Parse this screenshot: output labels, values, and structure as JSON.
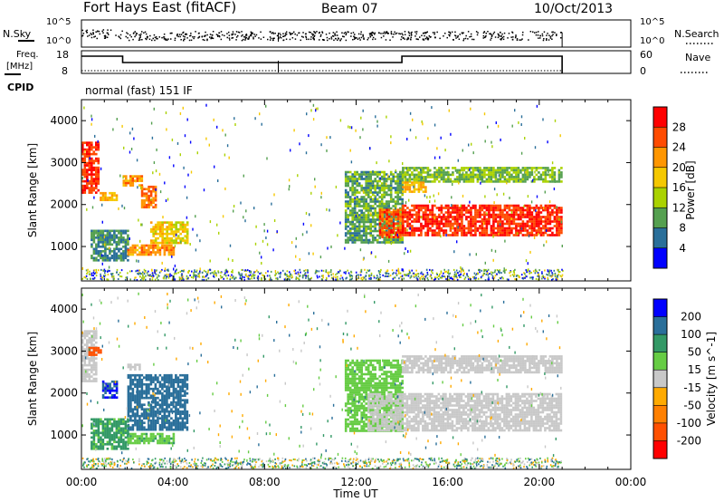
{
  "header": {
    "station": "Fort Hays East (fitACF)",
    "beam": "Beam 07",
    "date": "10/Oct/2013"
  },
  "strip1": {
    "left_label": "N.Sky",
    "right_label": "N.Search",
    "left_ticks": [
      "10^5",
      "10^0"
    ],
    "right_ticks": [
      "10^5",
      "10^0"
    ]
  },
  "strip2": {
    "left_label_1": "Freq.",
    "left_label_2": "[MHz]",
    "right_label": "Nave",
    "left_ticks": [
      "18",
      "8"
    ],
    "right_ticks": [
      "60",
      "0"
    ]
  },
  "cpid": {
    "label": "CPID",
    "value": "normal (fast) 151 IF"
  },
  "x_axis": {
    "title": "Time UT",
    "ticks": [
      "00:00",
      "04:00",
      "08:00",
      "12:00",
      "16:00",
      "20:00",
      "00:00"
    ]
  },
  "power_panel": {
    "ylabel": "Slant Range [km]",
    "yticks": [
      "1000",
      "2000",
      "3000",
      "4000"
    ],
    "colorbar_label": "Power [dB]",
    "colorbar_ticks": [
      "28",
      "24",
      "20",
      "16",
      "12",
      "8",
      "4"
    ],
    "colorbar_colors": [
      "#ff0000",
      "#ff4b00",
      "#ff9600",
      "#f5c800",
      "#aad200",
      "#55a050",
      "#2a6f9a",
      "#0000ff"
    ]
  },
  "velocity_panel": {
    "ylabel": "Slant Range [km]",
    "yticks": [
      "1000",
      "2000",
      "3000",
      "4000"
    ],
    "colorbar_label": "Velocity [m s^-1]",
    "colorbar_ticks": [
      "200",
      "100",
      "50",
      "15",
      "-15",
      "-50",
      "-100",
      "-200"
    ],
    "colorbar_colors": [
      "#0000ff",
      "#2a6f9a",
      "#339966",
      "#66cc44",
      "#c8c8c8",
      "#ffaa00",
      "#ff8000",
      "#ff5000",
      "#ff0000"
    ]
  },
  "chart_data": [
    {
      "type": "heatmap",
      "title": "Power",
      "xlabel": "Time UT",
      "ylabel": "Slant Range [km]",
      "x_range_hours": [
        0,
        24
      ],
      "y_range_km": [
        180,
        4500
      ],
      "colorbar": "Power [dB]",
      "colorbar_range": [
        0,
        32
      ],
      "features": [
        {
          "t_start": 0.0,
          "t_end": 0.7,
          "range_start": 2300,
          "range_end": 3500,
          "power_db": 28
        },
        {
          "t_start": 0.8,
          "t_end": 1.5,
          "range_start": 2100,
          "range_end": 2300,
          "power_db": 20
        },
        {
          "t_start": 1.8,
          "t_end": 2.6,
          "range_start": 2450,
          "range_end": 2700,
          "power_db": 22
        },
        {
          "t_start": 2.6,
          "t_end": 3.2,
          "range_start": 1950,
          "range_end": 2450,
          "power_db": 24
        },
        {
          "t_start": 3.0,
          "t_end": 4.6,
          "range_start": 1100,
          "range_end": 1600,
          "power_db": 18
        },
        {
          "t_start": 0.4,
          "t_end": 2.0,
          "range_start": 650,
          "range_end": 1400,
          "power_db": 8
        },
        {
          "t_start": 2.0,
          "t_end": 4.0,
          "range_start": 800,
          "range_end": 1050,
          "power_db": 22
        },
        {
          "t_start": 11.5,
          "t_end": 14.0,
          "range_start": 1100,
          "range_end": 2800,
          "power_db": 10
        },
        {
          "t_start": 13.0,
          "t_end": 14.0,
          "range_start": 1200,
          "range_end": 1900,
          "power_db": 26
        },
        {
          "t_start": 14.0,
          "t_end": 21.0,
          "range_start": 1250,
          "range_end": 2000,
          "power_db": 28
        },
        {
          "t_start": 14.0,
          "t_end": 21.0,
          "range_start": 2550,
          "range_end": 2900,
          "power_db": 12
        },
        {
          "t_start": 14.0,
          "t_end": 15.0,
          "range_start": 2300,
          "range_end": 2550,
          "power_db": 20
        }
      ]
    },
    {
      "type": "heatmap",
      "title": "Velocity",
      "xlabel": "Time UT",
      "ylabel": "Slant Range [km]",
      "x_range_hours": [
        0,
        24
      ],
      "y_range_km": [
        180,
        4500
      ],
      "colorbar": "Velocity [m s^-1]",
      "colorbar_range": [
        -200,
        200
      ],
      "features": [
        {
          "t_start": 0.0,
          "t_end": 0.6,
          "range_start": 2300,
          "range_end": 3500,
          "velocity": 0
        },
        {
          "t_start": 0.3,
          "t_end": 0.8,
          "range_start": 2900,
          "range_end": 3100,
          "velocity": -150
        },
        {
          "t_start": 0.9,
          "t_end": 1.5,
          "range_start": 1900,
          "range_end": 2300,
          "velocity": 200
        },
        {
          "t_start": 2.0,
          "t_end": 2.5,
          "range_start": 2550,
          "range_end": 2700,
          "velocity": 0
        },
        {
          "t_start": 2.0,
          "t_end": 4.6,
          "range_start": 1100,
          "range_end": 2450,
          "velocity": 150
        },
        {
          "t_start": 0.4,
          "t_end": 2.0,
          "range_start": 650,
          "range_end": 1400,
          "velocity": 60
        },
        {
          "t_start": 2.0,
          "t_end": 4.0,
          "range_start": 800,
          "range_end": 1050,
          "velocity": 40
        },
        {
          "t_start": 11.5,
          "t_end": 14.0,
          "range_start": 1100,
          "range_end": 2800,
          "velocity": 30
        },
        {
          "t_start": 12.5,
          "t_end": 21.0,
          "range_start": 1100,
          "range_end": 2000,
          "velocity": 0
        },
        {
          "t_start": 14.0,
          "t_end": 21.0,
          "range_start": 2500,
          "range_end": 2900,
          "velocity": 0
        }
      ]
    }
  ]
}
